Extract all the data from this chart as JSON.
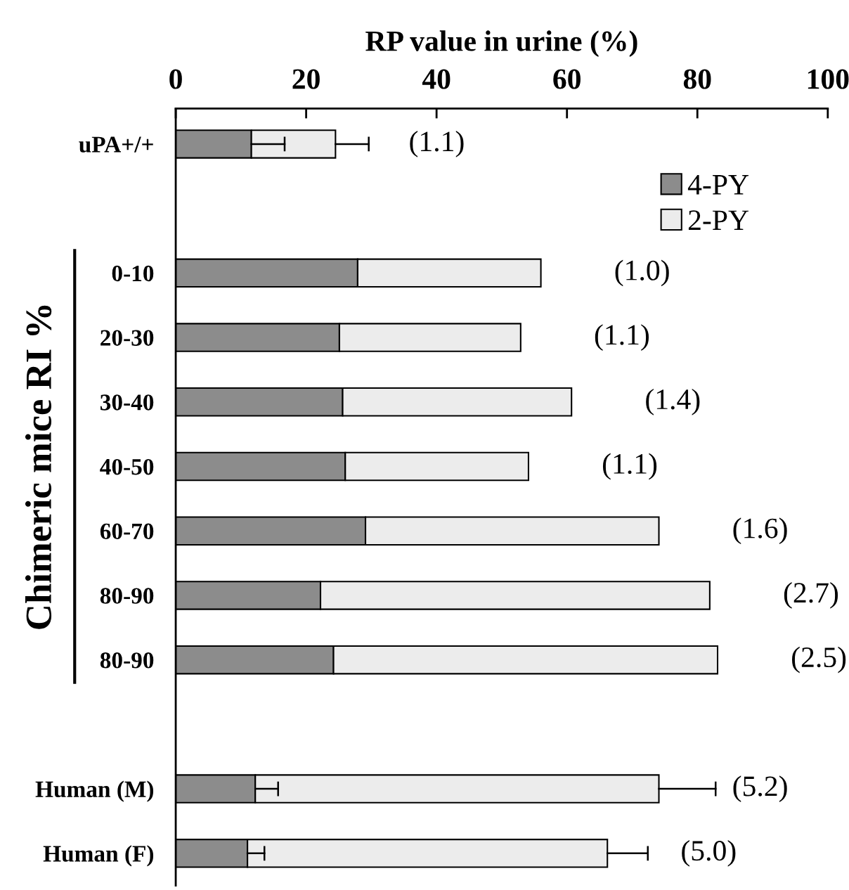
{
  "chart_data": {
    "type": "bar",
    "orientation": "horizontal",
    "stacked": true,
    "xlabel": "RP value in urine (%)",
    "ylabel": "Chimeric mice RI %",
    "categories": [
      "uPA+/+",
      null,
      "0-10",
      "20-30",
      "30-40",
      "40-50",
      "60-70",
      "80-90",
      "80-90",
      null,
      "Human (M)",
      "Human (F)"
    ],
    "series": [
      {
        "name": "4-PY",
        "color": "#8c8c8c",
        "values": [
          11.6,
          null,
          27.9,
          25.1,
          25.6,
          26.0,
          29.1,
          22.2,
          24.2,
          null,
          12.2,
          11.0
        ],
        "errors": [
          [
            11.6,
            16.7
          ],
          null,
          null,
          null,
          null,
          null,
          null,
          null,
          null,
          null,
          [
            12.2,
            15.7
          ],
          [
            11.0,
            13.6
          ]
        ]
      },
      {
        "name": "2-PY",
        "color": "#ececec",
        "values": [
          12.9,
          null,
          28.1,
          27.8,
          35.1,
          28.1,
          45.0,
          59.7,
          58.9,
          null,
          61.9,
          55.2
        ],
        "errors": [
          [
            24.5,
            29.6
          ],
          null,
          null,
          null,
          null,
          null,
          null,
          null,
          null,
          null,
          [
            74.1,
            82.8
          ],
          [
            66.2,
            72.4
          ]
        ]
      }
    ],
    "annotations": [
      {
        "text": "(1.1)",
        "x": 24.5,
        "y": "uPA+/+"
      },
      {
        "text": "(1.0)",
        "x": 56.0,
        "y": "0-10"
      },
      {
        "text": "(1.1)",
        "x": 52.9,
        "y": "20-30"
      },
      {
        "text": "(1.4)",
        "x": 60.7,
        "y": "30-40"
      },
      {
        "text": "(1.1)",
        "x": 54.1,
        "y": "40-50"
      },
      {
        "text": "(1.6)",
        "x": 74.1,
        "y": "60-70"
      },
      {
        "text": "(2.7)",
        "x": 81.9,
        "y": "80-90"
      },
      "(2.5)",
      {
        "text": "(5.2)",
        "x": 74.1,
        "y": "Human (M)"
      },
      {
        "text": "(5.0)",
        "x": 66.2,
        "y": "Human (F)"
      }
    ],
    "xlim": [
      0,
      100
    ],
    "xticks": [
      0,
      20,
      40,
      60,
      80,
      100
    ],
    "grid": false,
    "legend": "top right"
  }
}
